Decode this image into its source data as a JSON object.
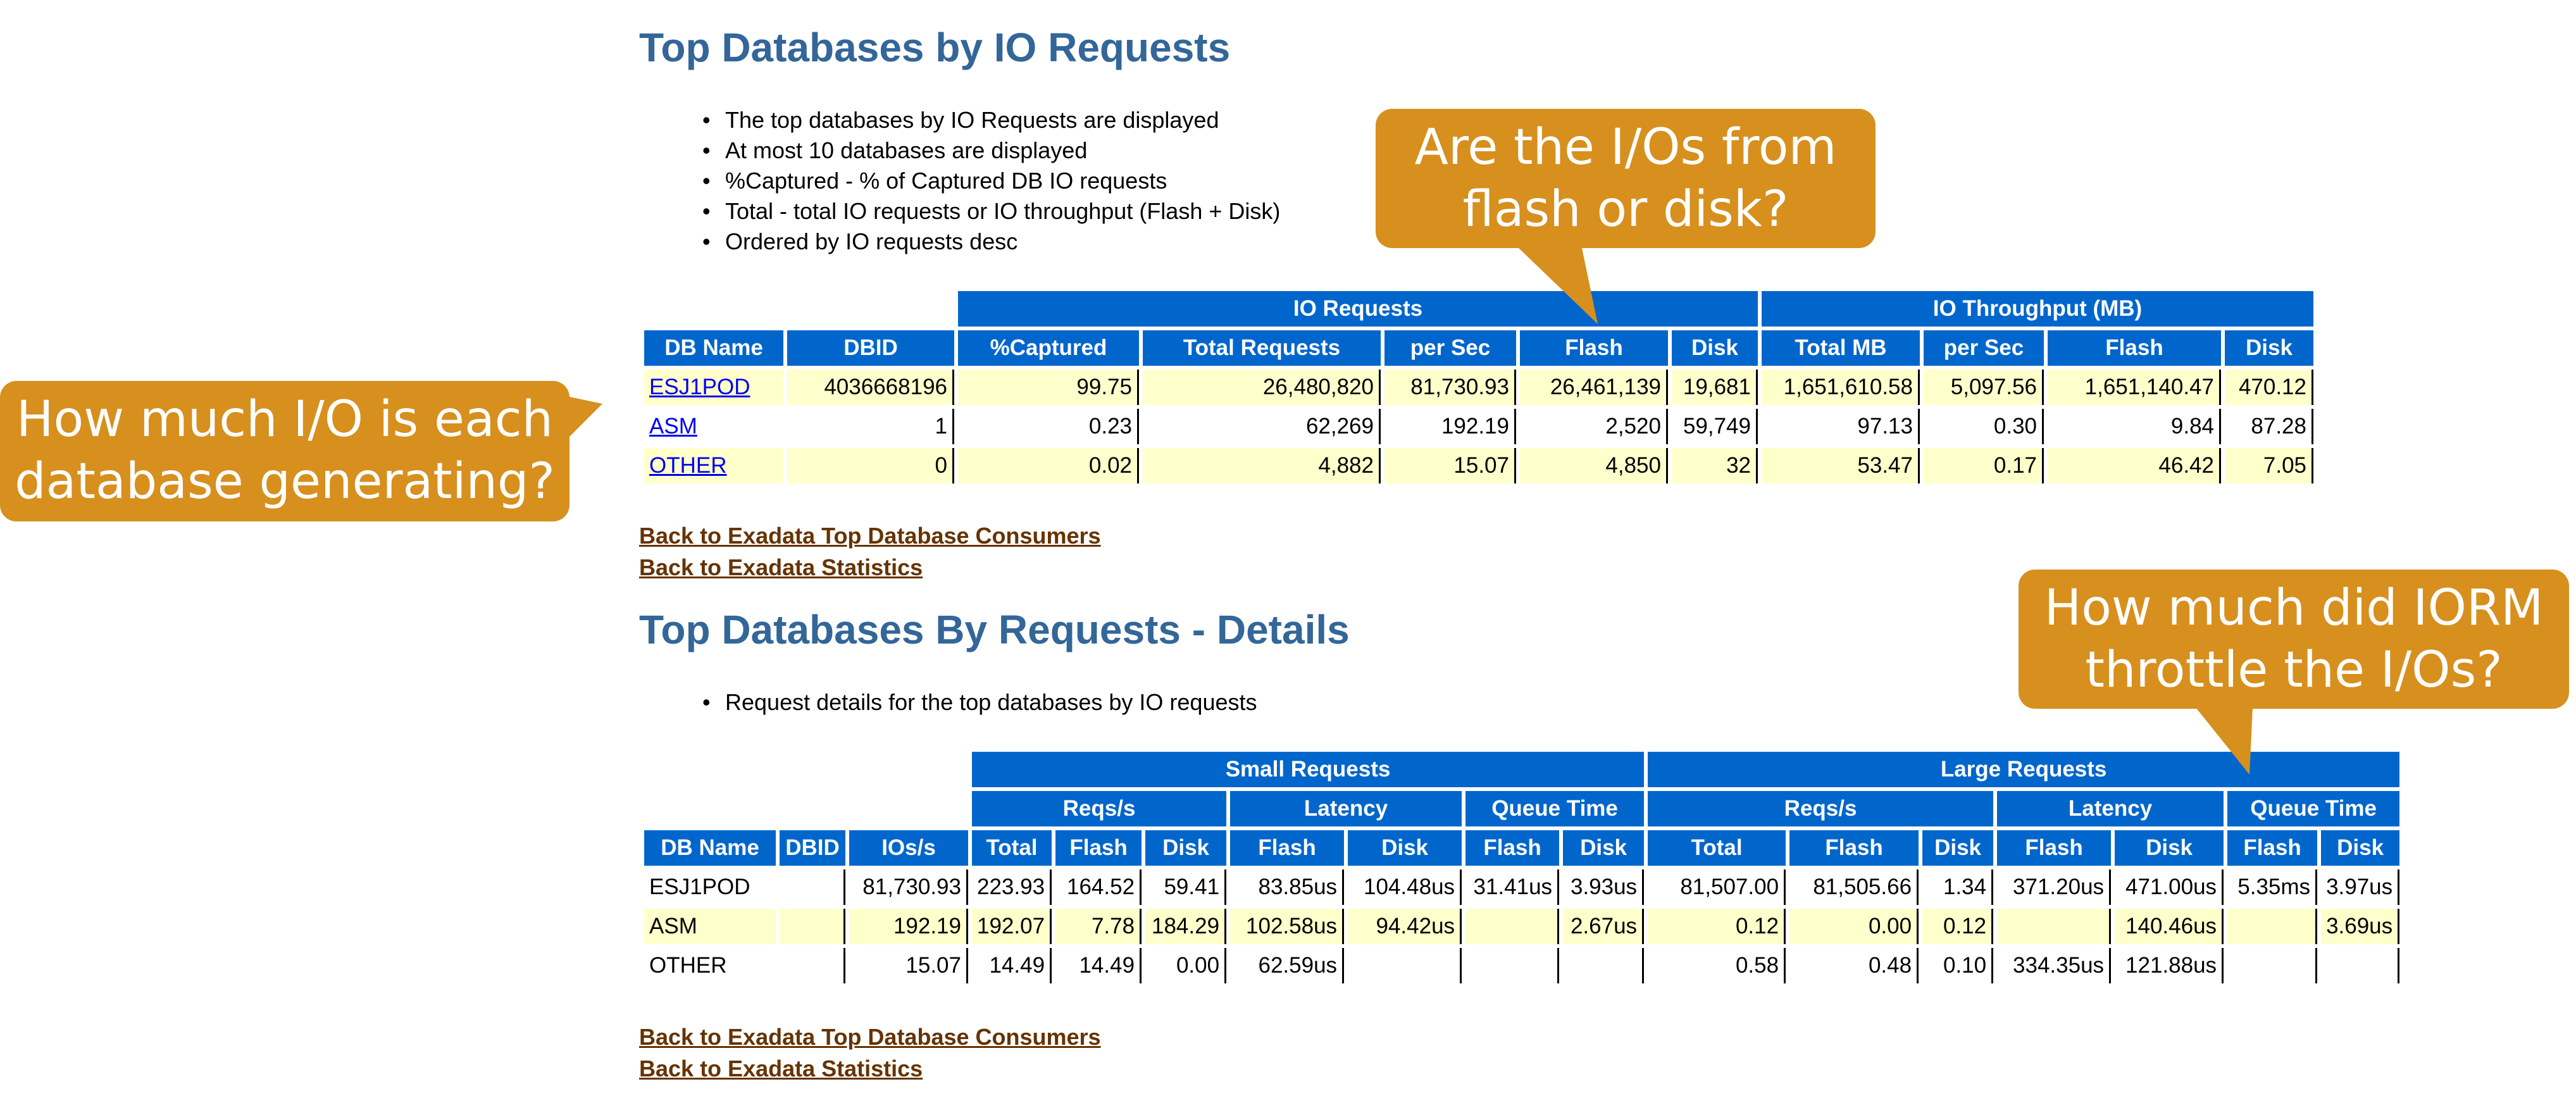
{
  "section1": {
    "title": "Top Databases by IO Requests",
    "bullets": [
      "The top databases by IO Requests are displayed",
      "At most 10 databases are displayed",
      "%Captured - % of Captured DB IO requests",
      "Total - total IO requests or IO throughput (Flash + Disk)",
      "Ordered by IO requests desc"
    ],
    "group_headers": {
      "io_requests": "IO Requests",
      "io_throughput": "IO Throughput (MB)"
    },
    "columns": [
      "DB Name",
      "DBID",
      "%Captured",
      "Total Requests",
      "per Sec",
      "Flash",
      "Disk",
      "Total MB",
      "per Sec",
      "Flash",
      "Disk"
    ],
    "rows": [
      [
        "ESJ1POD",
        "4036668196",
        "99.75",
        "26,480,820",
        "81,730.93",
        "26,461,139",
        "19,681",
        "1,651,610.58",
        "5,097.56",
        "1,651,140.47",
        "470.12"
      ],
      [
        "ASM",
        "1",
        "0.23",
        "62,269",
        "192.19",
        "2,520",
        "59,749",
        "97.13",
        "0.30",
        "9.84",
        "87.28"
      ],
      [
        "OTHER",
        "0",
        "0.02",
        "4,882",
        "15.07",
        "4,850",
        "32",
        "53.47",
        "0.17",
        "46.42",
        "7.05"
      ]
    ],
    "links": [
      "Back to Exadata Top Database Consumers",
      "Back to Exadata Statistics"
    ]
  },
  "section2": {
    "title": "Top Databases By Requests - Details",
    "bullets": [
      "Request details for the top databases by IO requests"
    ],
    "group_headers": {
      "small_requests": "Small Requests",
      "large_requests": "Large Requests",
      "reqs": "Reqs/s",
      "latency": "Latency",
      "queue_time": "Queue Time"
    },
    "columns": [
      "DB Name",
      "DBID",
      "IOs/s",
      "Total",
      "Flash",
      "Disk",
      "Flash",
      "Disk",
      "Flash",
      "Disk",
      "Total",
      "Flash",
      "Disk",
      "Flash",
      "Disk",
      "Flash",
      "Disk"
    ],
    "rows": [
      [
        "ESJ1POD",
        "",
        "81,730.93",
        "223.93",
        "164.52",
        "59.41",
        "83.85us",
        "104.48us",
        "31.41us",
        "3.93us",
        "81,507.00",
        "81,505.66",
        "1.34",
        "371.20us",
        "471.00us",
        "5.35ms",
        "3.97us"
      ],
      [
        "ASM",
        "",
        "192.19",
        "192.07",
        "7.78",
        "184.29",
        "102.58us",
        "94.42us",
        "",
        "2.67us",
        "0.12",
        "0.00",
        "0.12",
        "",
        "140.46us",
        "",
        "3.69us"
      ],
      [
        "OTHER",
        "",
        "15.07",
        "14.49",
        "14.49",
        "0.00",
        "62.59us",
        "",
        "",
        "",
        "0.58",
        "0.48",
        "0.10",
        "334.35us",
        "121.88us",
        "",
        ""
      ]
    ],
    "links": [
      "Back to Exadata Top Database Consumers",
      "Back to Exadata Statistics"
    ]
  },
  "callouts": {
    "flash_or_disk": "Are the I/Os from flash or disk?",
    "io_per_database": "How much I/O is each database generating?",
    "iorm_throttle": "How much did IORM throttle the I/Os?"
  },
  "colors": {
    "header_blue": "#0066cc",
    "title_blue": "#336699",
    "row_highlight": "#ffffcc",
    "callout_orange": "#d78f1d",
    "link_brown": "#663300"
  }
}
